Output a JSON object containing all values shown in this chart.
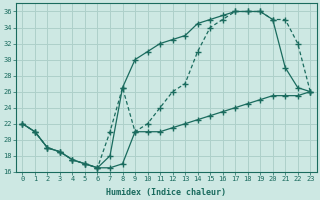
{
  "xlabel": "Humidex (Indice chaleur)",
  "bg_color": "#cde8e3",
  "grid_color": "#aed0ca",
  "line_color": "#1a6b5e",
  "xlim": [
    -0.5,
    23.5
  ],
  "ylim": [
    16,
    37
  ],
  "xticks": [
    0,
    1,
    2,
    3,
    4,
    5,
    6,
    7,
    8,
    9,
    10,
    11,
    12,
    13,
    14,
    15,
    16,
    17,
    18,
    19,
    20,
    21,
    22,
    23
  ],
  "yticks": [
    16,
    18,
    20,
    22,
    24,
    26,
    28,
    30,
    32,
    34,
    36
  ],
  "curve_bottom_x": [
    0,
    1,
    2,
    3,
    4,
    5,
    6,
    7,
    8,
    9,
    10,
    11,
    12,
    13,
    14,
    15,
    16,
    17,
    18,
    19,
    20,
    21,
    22,
    23
  ],
  "curve_bottom_y": [
    22,
    21,
    19,
    18.5,
    17.5,
    17,
    16.5,
    16.5,
    17,
    21,
    21,
    21,
    21.5,
    22,
    22.5,
    23,
    23.5,
    24,
    24.5,
    25,
    25.5,
    25.5,
    25.5,
    26
  ],
  "curve_upper_x": [
    0,
    1,
    2,
    3,
    4,
    5,
    6,
    7,
    8,
    9,
    10,
    11,
    12,
    13,
    14,
    15,
    16,
    17,
    18,
    19,
    20,
    21,
    22,
    23
  ],
  "curve_upper_y": [
    22,
    21,
    19,
    18.5,
    17.5,
    17,
    16.5,
    18,
    26.5,
    30,
    31,
    32,
    32.5,
    33,
    34.5,
    35,
    35.5,
    36,
    36,
    36,
    35,
    29,
    26.5,
    26
  ],
  "curve_mid_x": [
    0,
    1,
    2,
    3,
    4,
    5,
    6,
    7,
    8,
    9,
    10,
    11,
    12,
    13,
    14,
    15,
    16,
    17,
    18,
    19,
    20,
    21,
    22,
    23
  ],
  "curve_mid_y": [
    22,
    21,
    19,
    18.5,
    17.5,
    17,
    16.5,
    21,
    26.5,
    21,
    22,
    24,
    26,
    27,
    31,
    34,
    35,
    36,
    36,
    36,
    35,
    35,
    32,
    26
  ]
}
